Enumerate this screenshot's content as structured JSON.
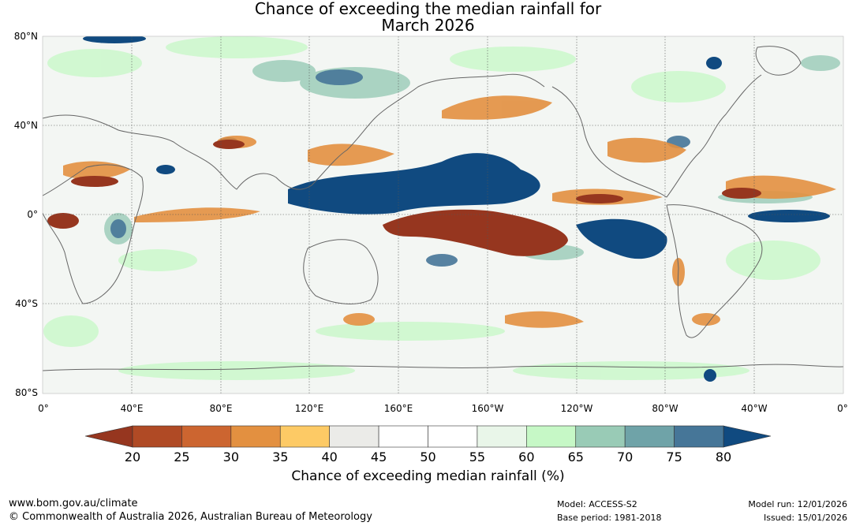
{
  "title": {
    "line1": "Chance of exceeding the median rainfall for",
    "line2": "March 2026"
  },
  "map": {
    "lat_labels": [
      "80°N",
      "40°N",
      "0°",
      "40°S",
      "80°S"
    ],
    "lon_labels": [
      "0°",
      "40°E",
      "80°E",
      "120°E",
      "160°E",
      "160°W",
      "120°W",
      "80°W",
      "40°W",
      "0°"
    ]
  },
  "colorbar": {
    "ticks": [
      "20",
      "25",
      "30",
      "35",
      "40",
      "45",
      "50",
      "55",
      "60",
      "65",
      "70",
      "75",
      "80"
    ],
    "below_color": "#96361f",
    "above_color": "#104a80",
    "colors": [
      "#b04a25",
      "#cc6530",
      "#e39040",
      "#fdca65",
      "#ebebe8",
      "#ffffff",
      "#ffffff",
      "#e9f6e9",
      "#c6f8c6",
      "#99cbb6",
      "#6fa3a8",
      "#467698"
    ],
    "title": "Chance of exceeding median rainfall (%)"
  },
  "footer": {
    "website": "www.bom.gov.au/climate",
    "copyright": "© Commonwealth of Australia 2026, Australian Bureau of Meteorology",
    "model": "Model: ACCESS-S2",
    "base_period": "Base period: 1981-2018",
    "model_run": "Model run: 12/01/2026",
    "issued": "Issued: 15/01/2026"
  }
}
